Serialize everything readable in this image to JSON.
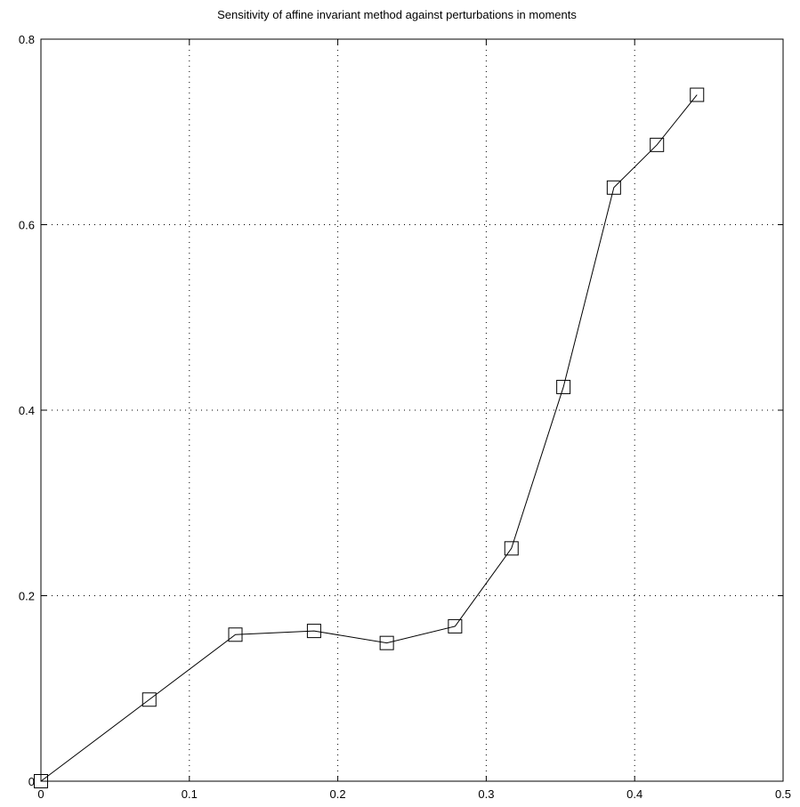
{
  "chart_data": {
    "type": "line",
    "title": "Sensitivity of affine invariant method against perturbations in moments",
    "xlabel": "",
    "ylabel": "",
    "xlim": [
      0,
      0.5
    ],
    "ylim": [
      0,
      0.8
    ],
    "grid": true,
    "marker": "square",
    "x_ticks": [
      0,
      0.1,
      0.2,
      0.3,
      0.4,
      0.5
    ],
    "x_tick_labels": [
      "0",
      "0.1",
      "0.2",
      "0.3",
      "0.4",
      "0.5"
    ],
    "y_ticks": [
      0,
      0.2,
      0.4,
      0.6,
      0.8
    ],
    "y_tick_labels": [
      "0",
      "0.2",
      "0.4",
      "0.6",
      "0.8"
    ],
    "series": [
      {
        "x": [
          0.0,
          0.073,
          0.131,
          0.184,
          0.233,
          0.279,
          0.317,
          0.352,
          0.386,
          0.415,
          0.442
        ],
        "y": [
          0.0,
          0.088,
          0.158,
          0.162,
          0.149,
          0.167,
          0.251,
          0.425,
          0.64,
          0.686,
          0.74
        ]
      }
    ],
    "line_color": "#000000"
  }
}
